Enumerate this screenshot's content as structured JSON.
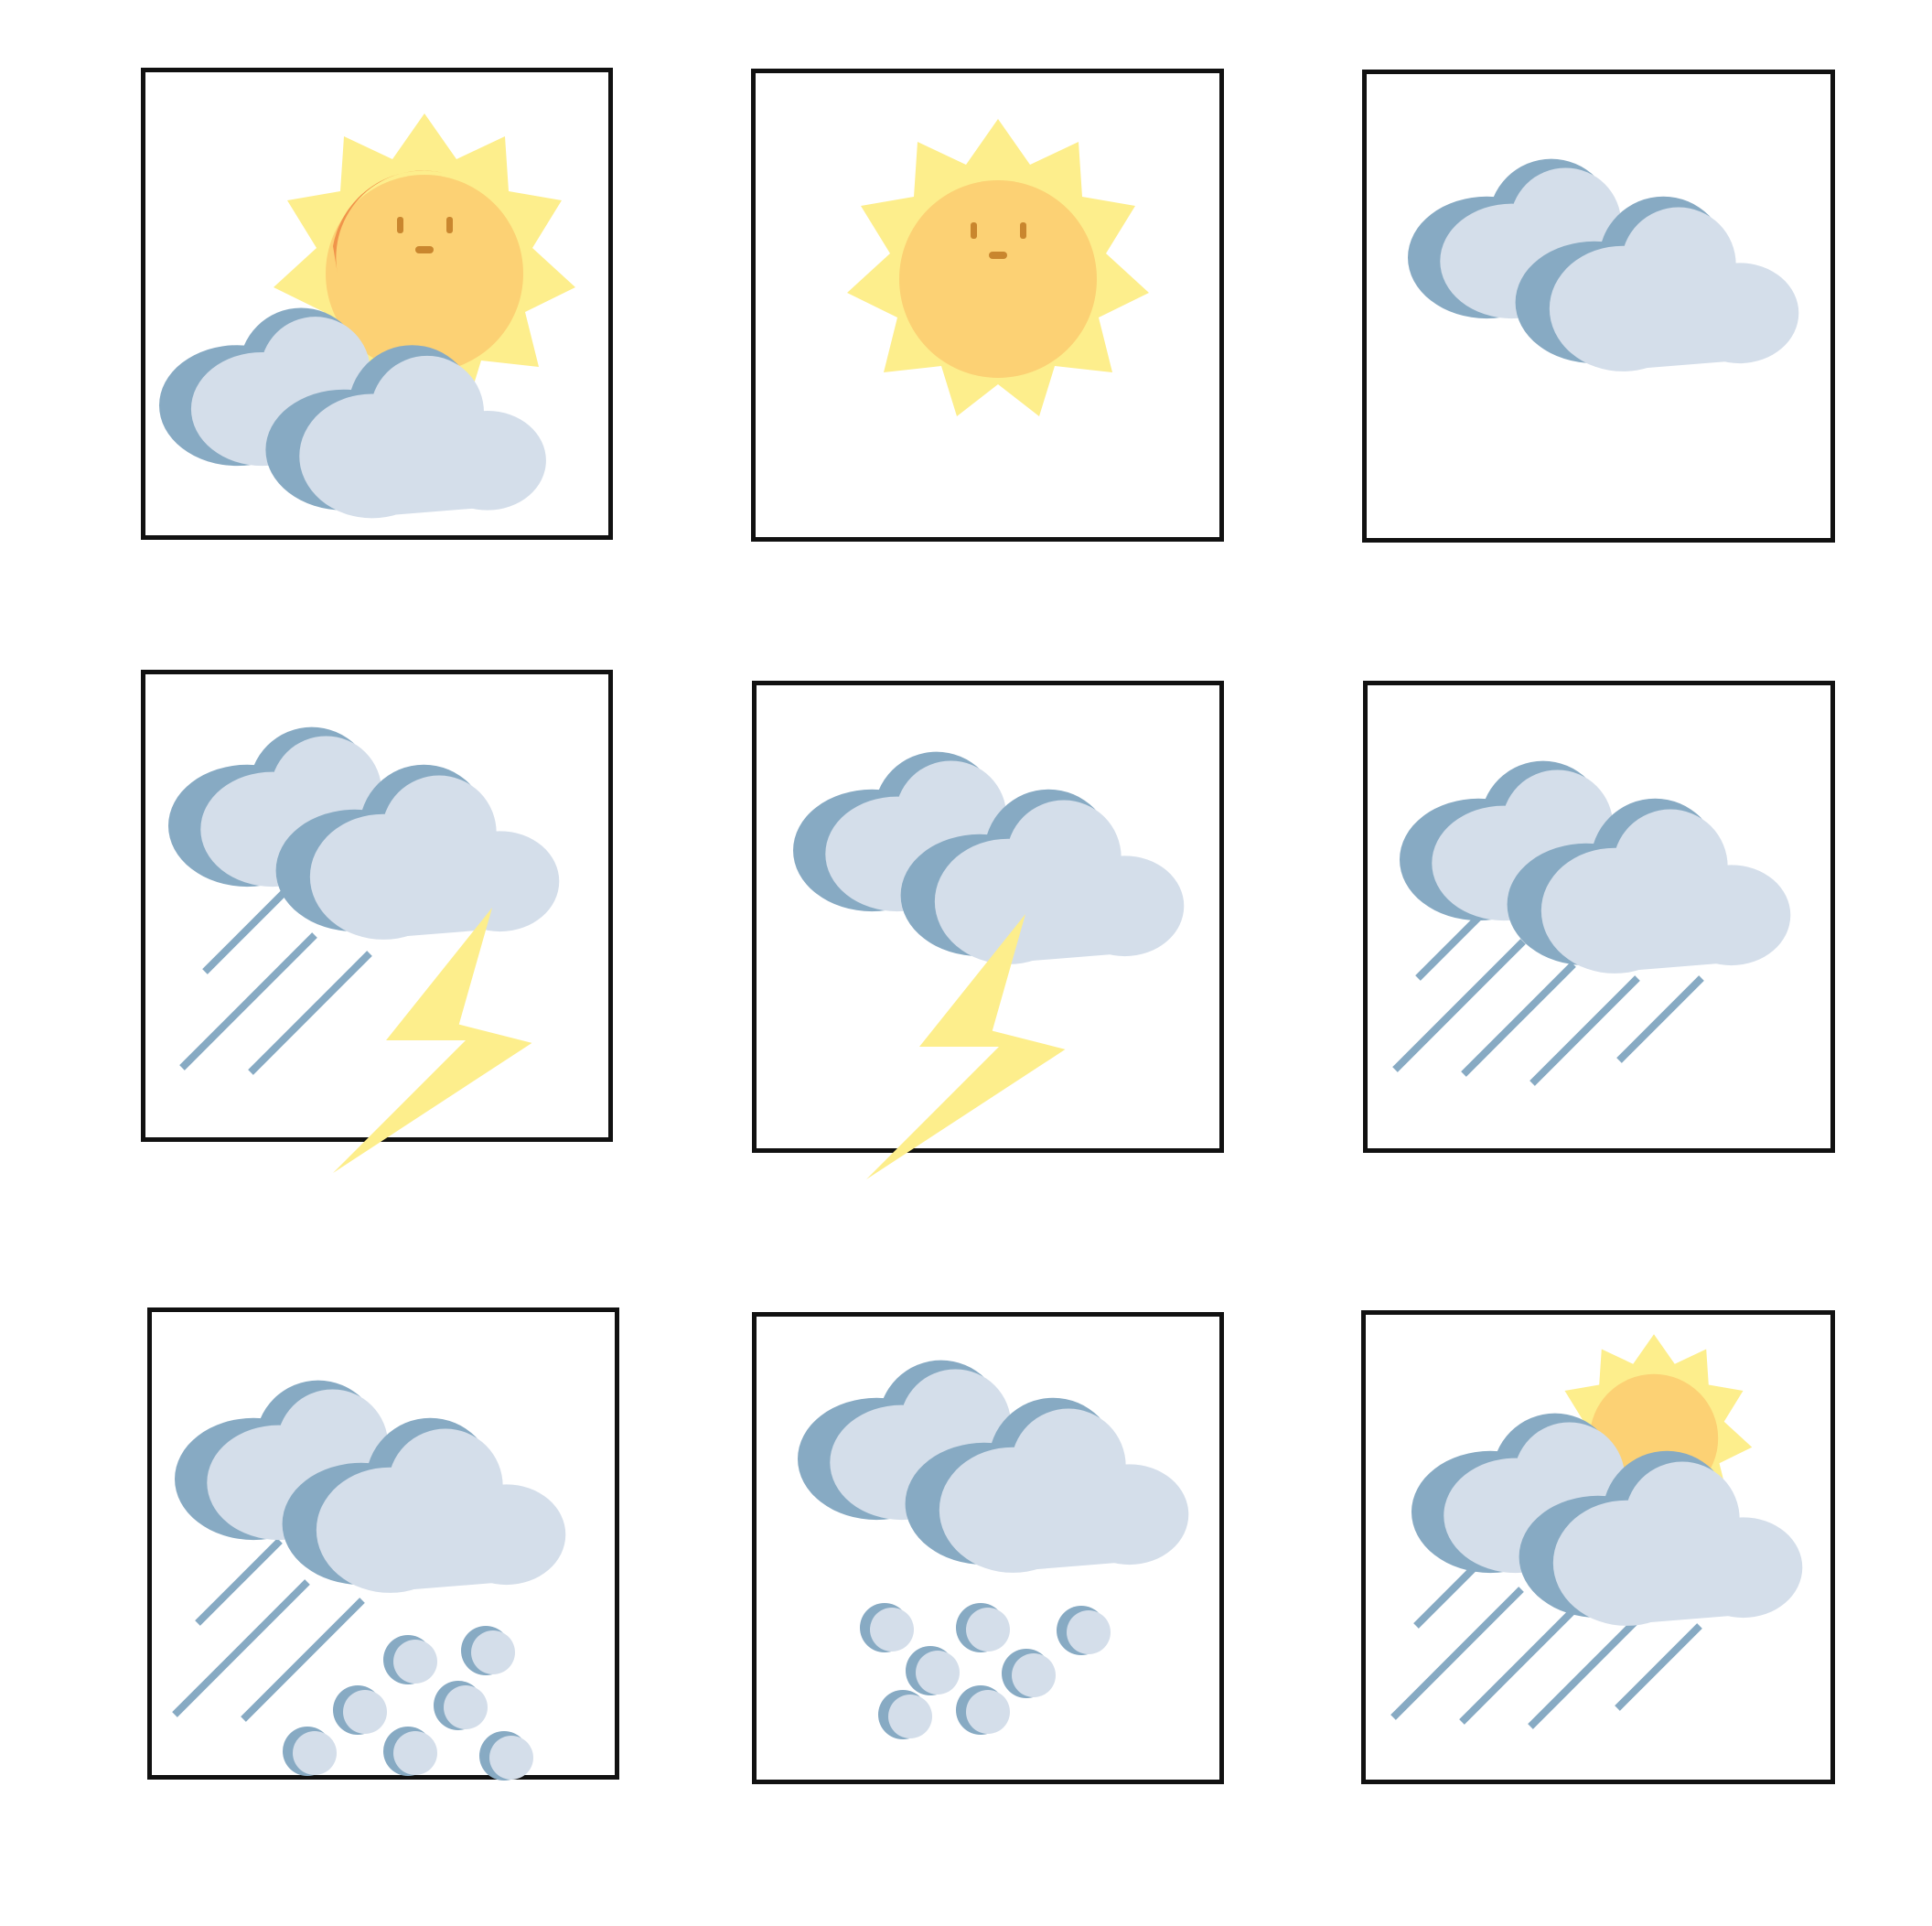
{
  "icons": [
    {
      "name": "partly-cloudy"
    },
    {
      "name": "sunny"
    },
    {
      "name": "cloudy"
    },
    {
      "name": "thunderstorm-rain"
    },
    {
      "name": "thunderstorm"
    },
    {
      "name": "rain"
    },
    {
      "name": "hail-rain"
    },
    {
      "name": "hail"
    },
    {
      "name": "sun-shower"
    }
  ],
  "colors": {
    "cloud_light": "#d4deea",
    "cloud_dark": "#87aac3",
    "sun_rays": "#fdee8c",
    "sun_core": "#fcd174",
    "sun_shade": "#f0944b",
    "lightning": "#fdee8c",
    "rain": "#87aac3",
    "face": "#c9862e",
    "frame": "#111111"
  }
}
